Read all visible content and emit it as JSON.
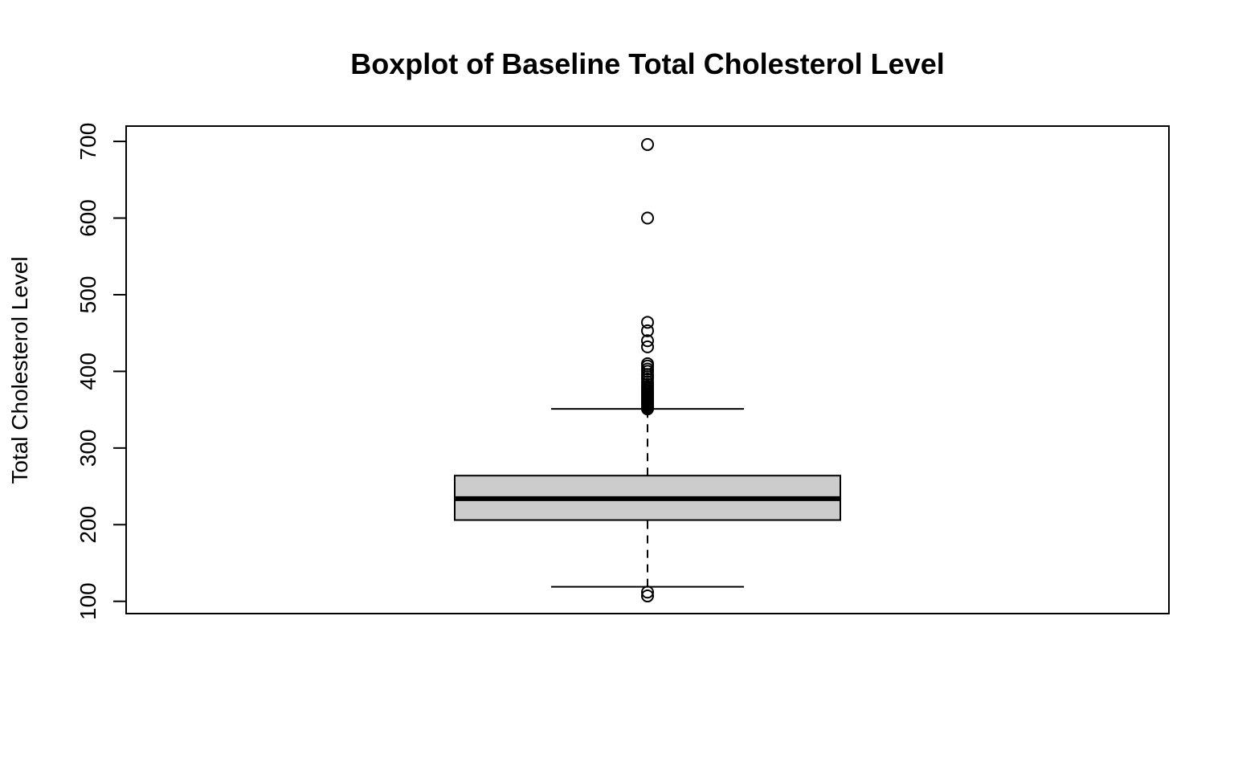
{
  "chart_data": {
    "type": "boxplot",
    "title": "Boxplot of Baseline Total Cholesterol Level",
    "xlabel": "",
    "ylabel": "Total Cholesterol Level",
    "ylim": [
      84,
      720
    ],
    "yticks": [
      100,
      200,
      300,
      400,
      500,
      600,
      700
    ],
    "ytick_labels": [
      "100",
      "200",
      "300",
      "400",
      "500",
      "600",
      "700"
    ],
    "grid": false,
    "box": {
      "whisker_low": 119,
      "q1": 206,
      "median": 234,
      "q3": 264,
      "whisker_high": 351,
      "fill": "#cccccc"
    },
    "outliers": [
      107,
      112,
      351,
      352,
      353,
      354,
      355,
      356,
      357,
      358,
      359,
      360,
      361,
      362,
      363,
      364,
      365,
      366,
      367,
      368,
      369,
      370,
      372,
      374,
      376,
      378,
      380,
      383,
      386,
      390,
      393,
      396,
      400,
      403,
      407,
      410,
      432,
      440,
      453,
      464,
      600,
      696
    ]
  }
}
